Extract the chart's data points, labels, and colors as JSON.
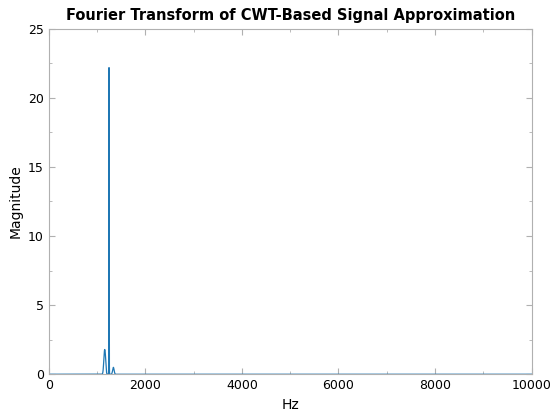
{
  "title": "Fourier Transform of CWT-Based Signal Approximation",
  "xlabel": "Hz",
  "ylabel": "Magnitude",
  "xlim": [
    0,
    10000
  ],
  "ylim": [
    0,
    25
  ],
  "xticks": [
    0,
    2000,
    4000,
    6000,
    8000,
    10000
  ],
  "yticks": [
    0,
    5,
    10,
    15,
    20,
    25
  ],
  "line_color": "#1f77b4",
  "line_width": 0.9,
  "dominant_freq": 1250,
  "dominant_amp": 22.2,
  "background_color": "#ffffff",
  "axes_color": "#b0b0b0",
  "title_fontsize": 10.5,
  "label_fontsize": 10,
  "tick_fontsize": 9,
  "figsize": [
    5.6,
    4.2
  ],
  "dpi": 100
}
